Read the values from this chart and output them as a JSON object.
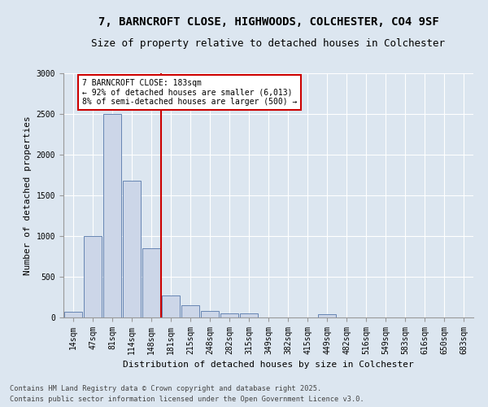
{
  "title1": "7, BARNCROFT CLOSE, HIGHWOODS, COLCHESTER, CO4 9SF",
  "title2": "Size of property relative to detached houses in Colchester",
  "xlabel": "Distribution of detached houses by size in Colchester",
  "ylabel": "Number of detached properties",
  "categories": [
    "14sqm",
    "47sqm",
    "81sqm",
    "114sqm",
    "148sqm",
    "181sqm",
    "215sqm",
    "248sqm",
    "282sqm",
    "315sqm",
    "349sqm",
    "382sqm",
    "415sqm",
    "449sqm",
    "482sqm",
    "516sqm",
    "549sqm",
    "583sqm",
    "616sqm",
    "650sqm",
    "683sqm"
  ],
  "values": [
    75,
    1000,
    2500,
    1680,
    850,
    270,
    155,
    80,
    55,
    50,
    0,
    0,
    0,
    40,
    0,
    0,
    0,
    0,
    0,
    0,
    0
  ],
  "bar_color": "#ccd6e8",
  "bar_edge_color": "#5577aa",
  "vline_color": "#cc0000",
  "annotation_text": "7 BARNCROFT CLOSE: 183sqm\n← 92% of detached houses are smaller (6,013)\n8% of semi-detached houses are larger (500) →",
  "annotation_box_color": "#ffffff",
  "annotation_box_edge": "#cc0000",
  "ylim": [
    0,
    3000
  ],
  "yticks": [
    0,
    500,
    1000,
    1500,
    2000,
    2500,
    3000
  ],
  "background_color": "#dce6f0",
  "plot_bg_color": "#dce6f0",
  "footer1": "Contains HM Land Registry data © Crown copyright and database right 2025.",
  "footer2": "Contains public sector information licensed under the Open Government Licence v3.0.",
  "title_fontsize": 10,
  "subtitle_fontsize": 9,
  "tick_fontsize": 7,
  "axis_label_fontsize": 8
}
